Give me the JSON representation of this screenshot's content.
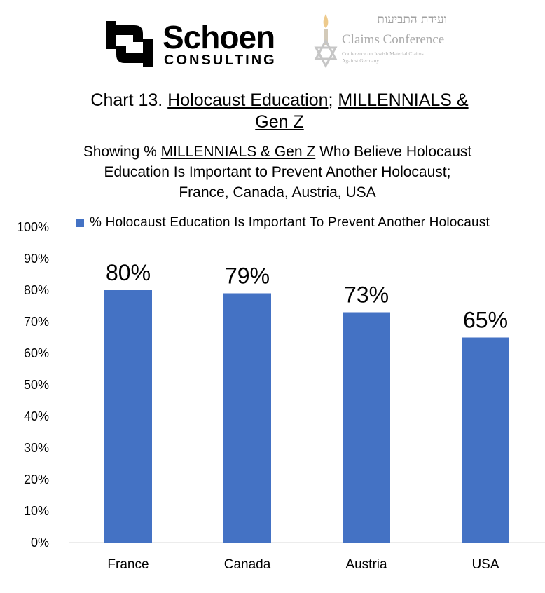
{
  "logos": {
    "schoen_word": "Schoen",
    "schoen_sub": "CONSULTING",
    "claims_hebrew": "ועידת התביעות",
    "claims_english": "Claims Conference",
    "claims_small_1": "Conference on Jewish Material Claims",
    "claims_small_2": "Against Germany"
  },
  "header": {
    "title_part1": "Chart 13. ",
    "title_part2": "Holocaust Education",
    "title_part3": "; ",
    "title_part4": "MILLENNIALS &",
    "title_part5": "Gen Z",
    "subtitle_part1": "Showing % ",
    "subtitle_part2": "MILLENNIALS & Gen Z",
    "subtitle_part3": " Who Believe Holocaust",
    "subtitle_line2": "Education Is Important to Prevent Another Holocaust;",
    "subtitle_line3": "France, Canada, Austria, USA"
  },
  "chart_data": {
    "type": "bar",
    "categories": [
      "France",
      "Canada",
      "Austria",
      "USA"
    ],
    "series": [
      {
        "name": "% Holocaust Education Is Important To Prevent Another Holocaust",
        "values": [
          80,
          79,
          73,
          65
        ],
        "labels": [
          "80%",
          "79%",
          "73%",
          "65%"
        ],
        "color": "#4472C4"
      }
    ],
    "yticks": [
      "0%",
      "10%",
      "20%",
      "30%",
      "40%",
      "50%",
      "60%",
      "70%",
      "80%",
      "90%",
      "100%"
    ],
    "ylim": [
      0,
      100
    ],
    "grid": false,
    "legend": "top"
  }
}
